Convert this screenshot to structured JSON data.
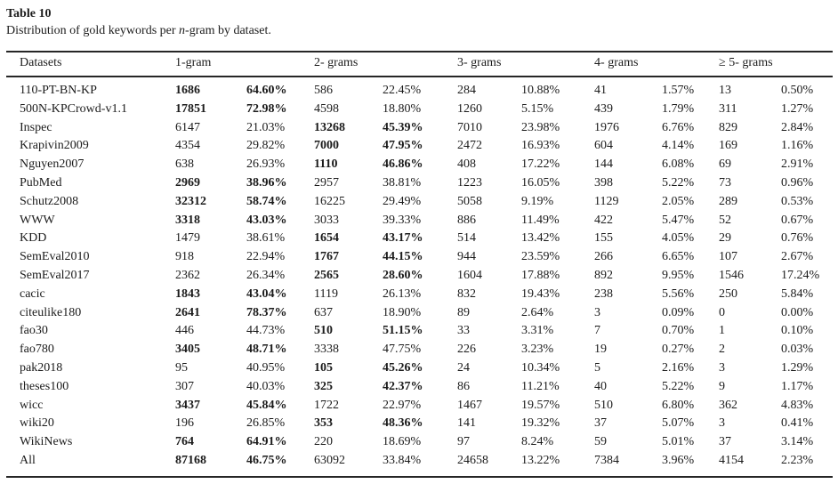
{
  "colors": {
    "background": "#ffffff",
    "text": "#1b1b1b",
    "rule": "#262626"
  },
  "caption": {
    "label": "Table 10",
    "desc_prefix": "Distribution of gold keywords per ",
    "desc_italic": "n",
    "desc_suffix": "-gram by dataset."
  },
  "table": {
    "headers": {
      "datasets": "Datasets",
      "grams": [
        "1-gram",
        "2- grams",
        "3- grams",
        "4- grams",
        "≥ 5- grams"
      ]
    },
    "rows": [
      {
        "dataset": "110-PT-BN-KP",
        "bold_gram": 0,
        "values": [
          [
            "1686",
            "64.60%"
          ],
          [
            "586",
            "22.45%"
          ],
          [
            "284",
            "10.88%"
          ],
          [
            "41",
            "1.57%"
          ],
          [
            "13",
            "0.50%"
          ]
        ]
      },
      {
        "dataset": "500N-KPCrowd-v1.1",
        "bold_gram": 0,
        "values": [
          [
            "17851",
            "72.98%"
          ],
          [
            "4598",
            "18.80%"
          ],
          [
            "1260",
            "5.15%"
          ],
          [
            "439",
            "1.79%"
          ],
          [
            "311",
            "1.27%"
          ]
        ]
      },
      {
        "dataset": "Inspec",
        "bold_gram": 1,
        "values": [
          [
            "6147",
            "21.03%"
          ],
          [
            "13268",
            "45.39%"
          ],
          [
            "7010",
            "23.98%"
          ],
          [
            "1976",
            "6.76%"
          ],
          [
            "829",
            "2.84%"
          ]
        ]
      },
      {
        "dataset": "Krapivin2009",
        "bold_gram": 1,
        "values": [
          [
            "4354",
            "29.82%"
          ],
          [
            "7000",
            "47.95%"
          ],
          [
            "2472",
            "16.93%"
          ],
          [
            "604",
            "4.14%"
          ],
          [
            "169",
            "1.16%"
          ]
        ]
      },
      {
        "dataset": "Nguyen2007",
        "bold_gram": 1,
        "values": [
          [
            "638",
            "26.93%"
          ],
          [
            "1110",
            "46.86%"
          ],
          [
            "408",
            "17.22%"
          ],
          [
            "144",
            "6.08%"
          ],
          [
            "69",
            "2.91%"
          ]
        ]
      },
      {
        "dataset": "PubMed",
        "bold_gram": 0,
        "values": [
          [
            "2969",
            "38.96%"
          ],
          [
            "2957",
            "38.81%"
          ],
          [
            "1223",
            "16.05%"
          ],
          [
            "398",
            "5.22%"
          ],
          [
            "73",
            "0.96%"
          ]
        ]
      },
      {
        "dataset": "Schutz2008",
        "bold_gram": 0,
        "values": [
          [
            "32312",
            "58.74%"
          ],
          [
            "16225",
            "29.49%"
          ],
          [
            "5058",
            "9.19%"
          ],
          [
            "1129",
            "2.05%"
          ],
          [
            "289",
            "0.53%"
          ]
        ]
      },
      {
        "dataset": "WWW",
        "bold_gram": 0,
        "values": [
          [
            "3318",
            "43.03%"
          ],
          [
            "3033",
            "39.33%"
          ],
          [
            "886",
            "11.49%"
          ],
          [
            "422",
            "5.47%"
          ],
          [
            "52",
            "0.67%"
          ]
        ]
      },
      {
        "dataset": "KDD",
        "bold_gram": 1,
        "values": [
          [
            "1479",
            "38.61%"
          ],
          [
            "1654",
            "43.17%"
          ],
          [
            "514",
            "13.42%"
          ],
          [
            "155",
            "4.05%"
          ],
          [
            "29",
            "0.76%"
          ]
        ]
      },
      {
        "dataset": "SemEval2010",
        "bold_gram": 1,
        "values": [
          [
            "918",
            "22.94%"
          ],
          [
            "1767",
            "44.15%"
          ],
          [
            "944",
            "23.59%"
          ],
          [
            "266",
            "6.65%"
          ],
          [
            "107",
            "2.67%"
          ]
        ]
      },
      {
        "dataset": "SemEval2017",
        "bold_gram": 1,
        "values": [
          [
            "2362",
            "26.34%"
          ],
          [
            "2565",
            "28.60%"
          ],
          [
            "1604",
            "17.88%"
          ],
          [
            "892",
            "9.95%"
          ],
          [
            "1546",
            "17.24%"
          ]
        ]
      },
      {
        "dataset": "cacic",
        "bold_gram": 0,
        "values": [
          [
            "1843",
            "43.04%"
          ],
          [
            "1119",
            "26.13%"
          ],
          [
            "832",
            "19.43%"
          ],
          [
            "238",
            "5.56%"
          ],
          [
            "250",
            "5.84%"
          ]
        ]
      },
      {
        "dataset": "citeulike180",
        "bold_gram": 0,
        "values": [
          [
            "2641",
            "78.37%"
          ],
          [
            "637",
            "18.90%"
          ],
          [
            "89",
            "2.64%"
          ],
          [
            "3",
            "0.09%"
          ],
          [
            "0",
            "0.00%"
          ]
        ]
      },
      {
        "dataset": "fao30",
        "bold_gram": 1,
        "values": [
          [
            "446",
            "44.73%"
          ],
          [
            "510",
            "51.15%"
          ],
          [
            "33",
            "3.31%"
          ],
          [
            "7",
            "0.70%"
          ],
          [
            "1",
            "0.10%"
          ]
        ]
      },
      {
        "dataset": "fao780",
        "bold_gram": 0,
        "values": [
          [
            "3405",
            "48.71%"
          ],
          [
            "3338",
            "47.75%"
          ],
          [
            "226",
            "3.23%"
          ],
          [
            "19",
            "0.27%"
          ],
          [
            "2",
            "0.03%"
          ]
        ]
      },
      {
        "dataset": "pak2018",
        "bold_gram": 1,
        "values": [
          [
            "95",
            "40.95%"
          ],
          [
            "105",
            "45.26%"
          ],
          [
            "24",
            "10.34%"
          ],
          [
            "5",
            "2.16%"
          ],
          [
            "3",
            "1.29%"
          ]
        ]
      },
      {
        "dataset": "theses100",
        "bold_gram": 1,
        "values": [
          [
            "307",
            "40.03%"
          ],
          [
            "325",
            "42.37%"
          ],
          [
            "86",
            "11.21%"
          ],
          [
            "40",
            "5.22%"
          ],
          [
            "9",
            "1.17%"
          ]
        ]
      },
      {
        "dataset": "wicc",
        "bold_gram": 0,
        "values": [
          [
            "3437",
            "45.84%"
          ],
          [
            "1722",
            "22.97%"
          ],
          [
            "1467",
            "19.57%"
          ],
          [
            "510",
            "6.80%"
          ],
          [
            "362",
            "4.83%"
          ]
        ]
      },
      {
        "dataset": "wiki20",
        "bold_gram": 1,
        "values": [
          [
            "196",
            "26.85%"
          ],
          [
            "353",
            "48.36%"
          ],
          [
            "141",
            "19.32%"
          ],
          [
            "37",
            "5.07%"
          ],
          [
            "3",
            "0.41%"
          ]
        ]
      },
      {
        "dataset": "WikiNews",
        "bold_gram": 0,
        "values": [
          [
            "764",
            "64.91%"
          ],
          [
            "220",
            "18.69%"
          ],
          [
            "97",
            "8.24%"
          ],
          [
            "59",
            "5.01%"
          ],
          [
            "37",
            "3.14%"
          ]
        ]
      },
      {
        "dataset": "All",
        "bold_gram": 0,
        "values": [
          [
            "87168",
            "46.75%"
          ],
          [
            "63092",
            "33.84%"
          ],
          [
            "24658",
            "13.22%"
          ],
          [
            "7384",
            "3.96%"
          ],
          [
            "4154",
            "2.23%"
          ]
        ]
      }
    ]
  }
}
